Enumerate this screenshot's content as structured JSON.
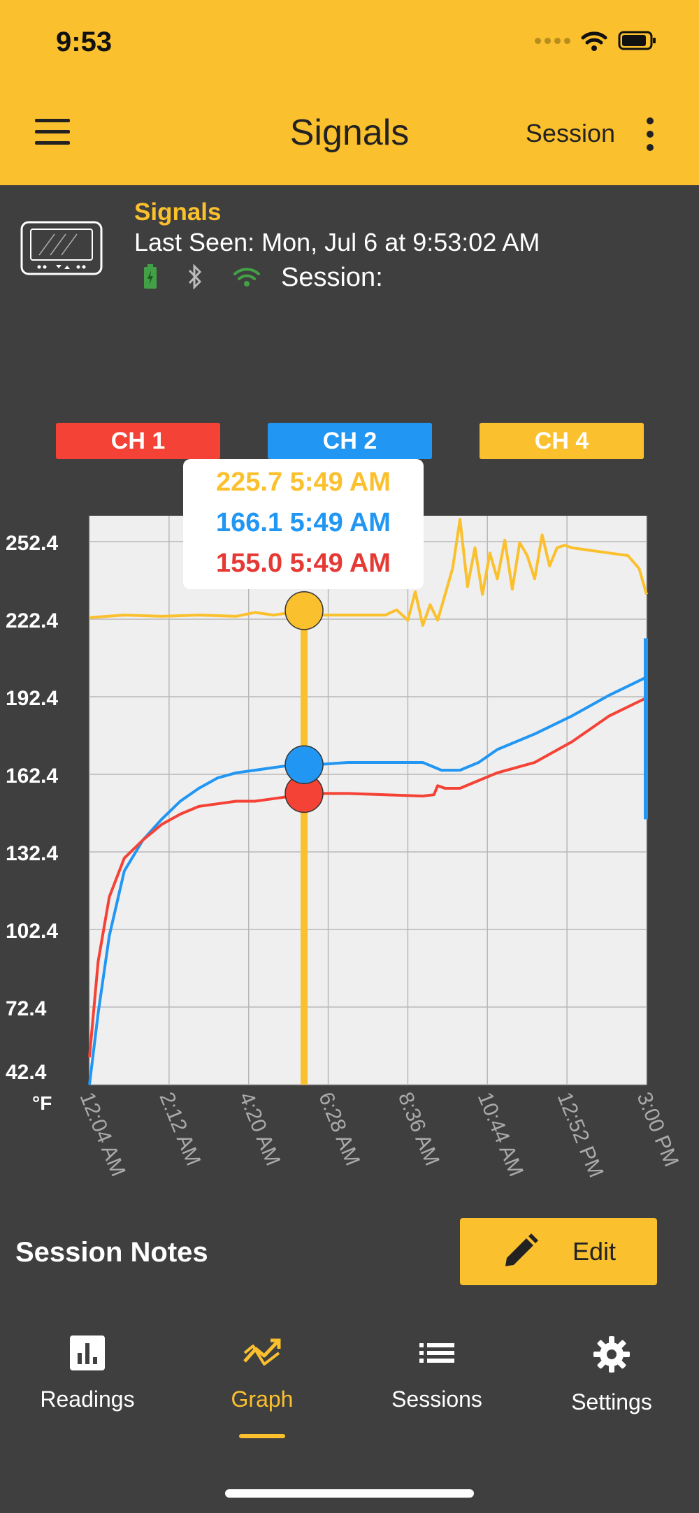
{
  "status_bar": {
    "time": "9:53"
  },
  "app_bar": {
    "title": "Signals",
    "session_label": "Session"
  },
  "device": {
    "name": "Signals",
    "last_seen": "Last Seen: Mon, Jul 6 at 9:53:02 AM",
    "session_label": "Session:",
    "icons": [
      "battery-icon",
      "bluetooth-icon",
      "wifi-icon"
    ]
  },
  "legend": [
    {
      "label": "CH 1",
      "color": "#f44336"
    },
    {
      "label": "CH 2",
      "color": "#2196f3"
    },
    {
      "label": "CH 4",
      "color": "#fbc02d"
    }
  ],
  "tooltip": {
    "lines": [
      {
        "text": "225.7 5:49 AM",
        "color": "#fbc02d"
      },
      {
        "text": "166.1 5:49 AM",
        "color": "#2196f3"
      },
      {
        "text": "155.0 5:49 AM",
        "color": "#e53935"
      }
    ]
  },
  "chart_data": {
    "type": "line",
    "ylabel": "°F",
    "y_ticks": [
      "252.4",
      "222.4",
      "192.4",
      "162.4",
      "132.4",
      "102.4",
      "72.4",
      "42.4"
    ],
    "x_ticks": [
      "12:04 AM",
      "2:12 AM",
      "4:20 AM",
      "6:28 AM",
      "8:36 AM",
      "10:44 AM",
      "12:52 PM",
      "3:00 PM"
    ],
    "ylim": [
      42.4,
      262.4
    ],
    "xlim_hours": [
      0.067,
      15.0
    ],
    "grid": true,
    "cursor_x": 5.82,
    "series": [
      {
        "name": "CH 1",
        "color": "#f44336",
        "points": [
          [
            0.067,
            53
          ],
          [
            0.3,
            90
          ],
          [
            0.6,
            115
          ],
          [
            1.0,
            130
          ],
          [
            1.5,
            137
          ],
          [
            2.0,
            143
          ],
          [
            2.5,
            147
          ],
          [
            3.0,
            150
          ],
          [
            3.5,
            151
          ],
          [
            4.0,
            152
          ],
          [
            4.5,
            152
          ],
          [
            5.0,
            153
          ],
          [
            5.5,
            154
          ],
          [
            5.82,
            155
          ],
          [
            6.0,
            155
          ],
          [
            7.0,
            155
          ],
          [
            8.0,
            154.5
          ],
          [
            9.0,
            154
          ],
          [
            9.3,
            154.5
          ],
          [
            9.4,
            158
          ],
          [
            9.6,
            157
          ],
          [
            10.0,
            157
          ],
          [
            10.5,
            160
          ],
          [
            11.0,
            163
          ],
          [
            12.0,
            167
          ],
          [
            13.0,
            175
          ],
          [
            14.0,
            185
          ],
          [
            15.0,
            192
          ]
        ]
      },
      {
        "name": "CH 2",
        "color": "#2196f3",
        "points": [
          [
            0.067,
            42.4
          ],
          [
            0.3,
            70
          ],
          [
            0.6,
            100
          ],
          [
            1.0,
            125
          ],
          [
            1.5,
            137
          ],
          [
            2.0,
            145
          ],
          [
            2.5,
            152
          ],
          [
            3.0,
            157
          ],
          [
            3.5,
            161
          ],
          [
            4.0,
            163
          ],
          [
            4.5,
            164
          ],
          [
            5.0,
            165
          ],
          [
            5.5,
            166
          ],
          [
            5.82,
            166.1
          ],
          [
            6.0,
            166
          ],
          [
            7.0,
            167
          ],
          [
            8.0,
            167
          ],
          [
            9.0,
            167
          ],
          [
            9.5,
            164
          ],
          [
            10.0,
            164
          ],
          [
            10.5,
            167
          ],
          [
            11.0,
            172
          ],
          [
            12.0,
            178
          ],
          [
            13.0,
            185
          ],
          [
            14.0,
            193
          ],
          [
            15.0,
            200
          ]
        ]
      },
      {
        "name": "CH 4",
        "color": "#fbc02d",
        "points": [
          [
            0.067,
            223
          ],
          [
            1.0,
            224
          ],
          [
            2.0,
            223.5
          ],
          [
            3.0,
            224
          ],
          [
            4.0,
            223.5
          ],
          [
            4.5,
            225
          ],
          [
            5.0,
            224
          ],
          [
            5.82,
            225.7
          ],
          [
            6.0,
            224
          ],
          [
            7.0,
            224
          ],
          [
            8.0,
            224
          ],
          [
            8.3,
            226
          ],
          [
            8.6,
            222
          ],
          [
            8.8,
            233
          ],
          [
            9.0,
            220
          ],
          [
            9.2,
            228
          ],
          [
            9.4,
            222
          ],
          [
            9.6,
            232
          ],
          [
            9.8,
            242
          ],
          [
            10.0,
            261
          ],
          [
            10.2,
            235
          ],
          [
            10.4,
            250
          ],
          [
            10.6,
            232
          ],
          [
            10.8,
            248
          ],
          [
            11.0,
            238
          ],
          [
            11.2,
            253
          ],
          [
            11.4,
            234
          ],
          [
            11.6,
            252
          ],
          [
            11.8,
            247
          ],
          [
            12.0,
            238
          ],
          [
            12.2,
            255
          ],
          [
            12.4,
            243
          ],
          [
            12.6,
            250
          ],
          [
            12.8,
            251
          ],
          [
            13.0,
            250
          ],
          [
            13.5,
            249
          ],
          [
            14.0,
            248
          ],
          [
            14.5,
            247
          ],
          [
            14.8,
            242
          ],
          [
            15.0,
            232
          ]
        ]
      }
    ]
  },
  "session_notes": {
    "title": "Session Notes",
    "edit_label": "Edit"
  },
  "tabs": [
    {
      "label": "Readings",
      "icon": "bar-chart-icon"
    },
    {
      "label": "Graph",
      "icon": "trend-icon",
      "active": true
    },
    {
      "label": "Sessions",
      "icon": "list-icon"
    },
    {
      "label": "Settings",
      "icon": "gear-icon"
    }
  ]
}
